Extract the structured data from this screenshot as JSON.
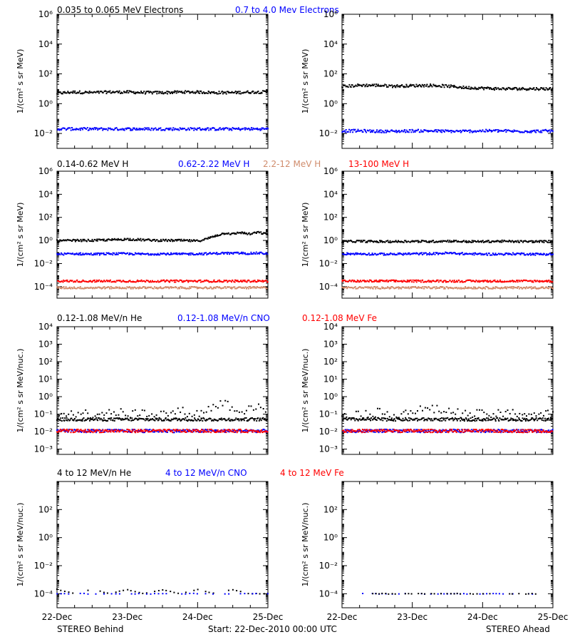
{
  "legend_rows": [
    [
      {
        "text": "0.035 to 0.065 MeV Electrons",
        "color": "#000000"
      },
      {
        "text": "0.7 to 4.0 Mev Electrons",
        "color": "#0000ff"
      }
    ],
    [
      {
        "text": "0.14-0.62 MeV H",
        "color": "#000000"
      },
      {
        "text": "0.62-2.22 MeV H",
        "color": "#0000ff"
      },
      {
        "text": "2.2-12 MeV H",
        "color": "#d08c6c"
      },
      {
        "text": "13-100 MeV H",
        "color": "#ff0000"
      }
    ],
    [
      {
        "text": "0.12-1.08 MeV/n He",
        "color": "#000000"
      },
      {
        "text": "0.12-1.08 MeV/n CNO",
        "color": "#0000ff"
      },
      {
        "text": "0.12-1.08 MeV Fe",
        "color": "#ff0000"
      }
    ],
    [
      {
        "text": "4 to 12 MeV/n He",
        "color": "#000000"
      },
      {
        "text": "4 to 12 MeV/n CNO",
        "color": "#0000ff"
      },
      {
        "text": "4 to 12 MeV Fe",
        "color": "#ff0000"
      }
    ]
  ],
  "x_ticks": [
    "22-Dec",
    "23-Dec",
    "24-Dec",
    "25-Dec"
  ],
  "footer": {
    "left": "STEREO Behind",
    "center": "Start: 22-Dec-2010 00:00 UTC",
    "right": "STEREO Ahead"
  },
  "chart_data": [
    {
      "type": "scatter",
      "spacecraft": "STEREO Behind",
      "row": 0,
      "ylabel": "1/(cm² s sr MeV)",
      "yscale": "log",
      "ylim": [
        0.001,
        1000000
      ],
      "yticks": [
        {
          "value": 0.01,
          "label": "10⁻²"
        },
        {
          "value": 1,
          "label": "10⁰"
        },
        {
          "value": 100,
          "label": "10²"
        },
        {
          "value": 10000,
          "label": "10⁴"
        },
        {
          "value": 1000000,
          "label": "10⁶"
        }
      ],
      "x": [
        0,
        0.25,
        0.5,
        0.75,
        1,
        1.25,
        1.5,
        1.75,
        2,
        2.25,
        2.5,
        2.75,
        3
      ],
      "series": [
        {
          "name": "0.035 to 0.065 MeV Electrons",
          "color": "#000000",
          "values": [
            5,
            6,
            5.5,
            6,
            6,
            5.5,
            5.5,
            6,
            6,
            5.5,
            5.5,
            6,
            6
          ]
        },
        {
          "name": "0.7 to 4.0 Mev Electrons",
          "color": "#0000ff",
          "values": [
            0.02,
            0.02,
            0.02,
            0.02,
            0.02,
            0.02,
            0.02,
            0.02,
            0.02,
            0.02,
            0.02,
            0.02,
            0.02
          ]
        }
      ]
    },
    {
      "type": "scatter",
      "spacecraft": "STEREO Ahead",
      "row": 0,
      "ylabel": "1/(cm² s sr MeV)",
      "yscale": "log",
      "ylim": [
        0.001,
        1000000
      ],
      "yticks": [
        {
          "value": 0.01,
          "label": "10⁻²"
        },
        {
          "value": 1,
          "label": "10⁰"
        },
        {
          "value": 100,
          "label": "10²"
        },
        {
          "value": 10000,
          "label": "10⁴"
        },
        {
          "value": 1000000,
          "label": "10⁶"
        }
      ],
      "x": [
        0,
        0.25,
        0.5,
        0.75,
        1,
        1.25,
        1.5,
        1.75,
        2,
        2.25,
        2.5,
        2.75,
        3
      ],
      "series": [
        {
          "name": "0.035 to 0.065 MeV Electrons",
          "color": "#000000",
          "values": [
            14,
            17,
            17,
            15,
            16,
            17,
            15,
            12,
            11,
            10,
            10,
            10,
            10
          ]
        },
        {
          "name": "0.7 to 4.0 Mev Electrons",
          "color": "#0000ff",
          "values": [
            0.015,
            0.015,
            0.014,
            0.014,
            0.015,
            0.015,
            0.014,
            0.014,
            0.015,
            0.015,
            0.014,
            0.014,
            0.015
          ]
        }
      ]
    },
    {
      "type": "scatter",
      "spacecraft": "STEREO Behind",
      "row": 1,
      "ylabel": "1/(cm² s sr MeV)",
      "yscale": "log",
      "ylim": [
        1e-05,
        1000000
      ],
      "yticks": [
        {
          "value": 0.0001,
          "label": "10⁻⁴"
        },
        {
          "value": 0.01,
          "label": "10⁻²"
        },
        {
          "value": 1,
          "label": "10⁰"
        },
        {
          "value": 100,
          "label": "10²"
        },
        {
          "value": 10000,
          "label": "10⁴"
        },
        {
          "value": 1000000,
          "label": "10⁶"
        }
      ],
      "x": [
        0,
        0.25,
        0.5,
        0.75,
        1,
        1.25,
        1.5,
        1.75,
        2,
        2.1,
        2.25,
        2.4,
        2.5,
        2.6,
        2.75,
        2.85,
        3
      ],
      "series": [
        {
          "name": "0.14-0.62 MeV H",
          "color": "#000000",
          "values": [
            0.9,
            1.0,
            1.0,
            1.1,
            1.3,
            1.1,
            1.0,
            1.0,
            0.9,
            1.2,
            2.5,
            4.5,
            3.5,
            5,
            3.5,
            5,
            3.5
          ]
        },
        {
          "name": "0.62-2.22 MeV H",
          "color": "#0000ff",
          "values": [
            0.065,
            0.07,
            0.065,
            0.07,
            0.07,
            0.065,
            0.07,
            0.065,
            0.07,
            0.07,
            0.075,
            0.08,
            0.075,
            0.08,
            0.075,
            0.08,
            0.075
          ]
        },
        {
          "name": "2.2-12 MeV H",
          "color": "#d08c6c",
          "values": [
            8e-05,
            8e-05,
            8e-05,
            8e-05,
            8e-05,
            8e-05,
            8e-05,
            8e-05,
            8e-05,
            8e-05,
            8e-05,
            8e-05,
            8e-05,
            8e-05,
            8e-05,
            8e-05,
            8e-05
          ]
        },
        {
          "name": "13-100 MeV H",
          "color": "#ff0000",
          "values": [
            0.0003,
            0.0003,
            0.0003,
            0.0003,
            0.0003,
            0.0003,
            0.0003,
            0.0003,
            0.0003,
            0.0003,
            0.0003,
            0.0003,
            0.0003,
            0.0003,
            0.0003,
            0.0003,
            0.0003
          ]
        }
      ]
    },
    {
      "type": "scatter",
      "spacecraft": "STEREO Ahead",
      "row": 1,
      "ylabel": "1/(cm² s sr MeV)",
      "yscale": "log",
      "ylim": [
        1e-05,
        1000000
      ],
      "yticks": [
        {
          "value": 0.0001,
          "label": "10⁻⁴"
        },
        {
          "value": 0.01,
          "label": "10⁻²"
        },
        {
          "value": 1,
          "label": "10⁰"
        },
        {
          "value": 100,
          "label": "10²"
        },
        {
          "value": 10000,
          "label": "10⁴"
        },
        {
          "value": 1000000,
          "label": "10⁶"
        }
      ],
      "x": [
        0,
        0.25,
        0.5,
        0.75,
        1,
        1.25,
        1.5,
        1.75,
        2,
        2.25,
        2.5,
        2.75,
        3
      ],
      "series": [
        {
          "name": "0.14-0.62 MeV H",
          "color": "#000000",
          "values": [
            0.8,
            0.85,
            0.8,
            0.8,
            0.85,
            0.8,
            0.9,
            0.8,
            0.8,
            0.85,
            0.8,
            0.8,
            0.8
          ]
        },
        {
          "name": "0.62-2.22 MeV H",
          "color": "#0000ff",
          "values": [
            0.07,
            0.07,
            0.065,
            0.065,
            0.07,
            0.07,
            0.08,
            0.07,
            0.065,
            0.065,
            0.07,
            0.065,
            0.065
          ]
        },
        {
          "name": "2.2-12 MeV H",
          "color": "#d08c6c",
          "values": [
            8e-05,
            8e-05,
            8e-05,
            8e-05,
            8e-05,
            8e-05,
            8e-05,
            8e-05,
            8e-05,
            8e-05,
            8e-05,
            8e-05,
            8e-05
          ]
        },
        {
          "name": "13-100 MeV H",
          "color": "#ff0000",
          "values": [
            0.0003,
            0.0003,
            0.0003,
            0.0003,
            0.0003,
            0.0003,
            0.0003,
            0.0003,
            0.0003,
            0.0003,
            0.0003,
            0.0003,
            0.0003
          ]
        }
      ]
    },
    {
      "type": "scatter",
      "spacecraft": "STEREO Behind",
      "row": 2,
      "ylabel": "1/(cm² s sr MeV/nuc.)",
      "yscale": "log",
      "ylim": [
        0.0005,
        10000
      ],
      "yticks": [
        {
          "value": 0.001,
          "label": "10⁻³"
        },
        {
          "value": 0.01,
          "label": "10⁻²"
        },
        {
          "value": 0.1,
          "label": "10⁻¹"
        },
        {
          "value": 1,
          "label": "10⁰"
        },
        {
          "value": 10,
          "label": "10¹"
        },
        {
          "value": 100,
          "label": "10²"
        },
        {
          "value": 1000,
          "label": "10³"
        },
        {
          "value": 10000,
          "label": "10⁴"
        }
      ],
      "x": [
        0,
        0.25,
        0.5,
        0.75,
        1,
        1.25,
        1.5,
        1.75,
        2,
        2.25,
        2.4,
        2.5,
        2.65,
        2.75,
        2.9,
        3
      ],
      "series": [
        {
          "name": "0.12-1.08 MeV/n He",
          "color": "#000000",
          "values": [
            0.05,
            0.05,
            0.05,
            0.05,
            0.05,
            0.05,
            0.05,
            0.05,
            0.05,
            0.05,
            0.05,
            0.05,
            0.05,
            0.05,
            0.05,
            0.05
          ]
        },
        {
          "name": "0.12-1.08 MeV/n He (scattered)",
          "color": "#000000",
          "values": [
            0.1,
            0.12,
            0.1,
            0.15,
            0.1,
            0.12,
            0.1,
            0.15,
            0.1,
            0.3,
            0.5,
            0.2,
            0.15,
            0.3,
            0.2,
            0.15
          ]
        },
        {
          "name": "0.12-1.08 MeV/n CNO",
          "color": "#0000ff",
          "values": [
            0.011,
            0.011,
            0.011,
            0.011,
            0.011,
            0.011,
            0.011,
            0.011,
            0.011,
            0.011,
            0.011,
            0.011,
            0.011,
            0.011,
            0.011,
            0.011
          ]
        },
        {
          "name": "0.12-1.08 MeV Fe",
          "color": "#ff0000",
          "values": [
            0.011,
            0.011,
            0.011,
            0.011,
            0.011,
            0.011,
            0.011,
            0.011,
            0.011,
            0.011,
            0.011,
            0.011,
            0.011,
            0.011,
            0.011,
            0.011
          ]
        }
      ]
    },
    {
      "type": "scatter",
      "spacecraft": "STEREO Ahead",
      "row": 2,
      "ylabel": "1/(cm² s sr MeV/nuc.)",
      "yscale": "log",
      "ylim": [
        0.0005,
        10000
      ],
      "yticks": [
        {
          "value": 0.001,
          "label": "10⁻³"
        },
        {
          "value": 0.01,
          "label": "10⁻²"
        },
        {
          "value": 0.1,
          "label": "10⁻¹"
        },
        {
          "value": 1,
          "label": "10⁰"
        },
        {
          "value": 10,
          "label": "10¹"
        },
        {
          "value": 100,
          "label": "10²"
        },
        {
          "value": 1000,
          "label": "10³"
        },
        {
          "value": 10000,
          "label": "10⁴"
        }
      ],
      "x": [
        0,
        0.25,
        0.5,
        0.75,
        1,
        1.25,
        1.5,
        1.75,
        2,
        2.25,
        2.5,
        2.75,
        3
      ],
      "series": [
        {
          "name": "0.12-1.08 MeV/n He",
          "color": "#000000",
          "values": [
            0.05,
            0.05,
            0.05,
            0.05,
            0.05,
            0.05,
            0.05,
            0.05,
            0.05,
            0.05,
            0.05,
            0.05,
            0.05
          ]
        },
        {
          "name": "0.12-1.08 MeV/n He (scattered)",
          "color": "#000000",
          "values": [
            0.1,
            0.1,
            0.12,
            0.1,
            0.15,
            0.2,
            0.15,
            0.1,
            0.1,
            0.1,
            0.12,
            0.1,
            0.1
          ]
        },
        {
          "name": "0.12-1.08 MeV/n CNO",
          "color": "#0000ff",
          "values": [
            0.011,
            0.011,
            0.011,
            0.011,
            0.011,
            0.011,
            0.011,
            0.011,
            0.011,
            0.011,
            0.011,
            0.011,
            0.011
          ]
        },
        {
          "name": "0.12-1.08 MeV Fe",
          "color": "#ff0000",
          "values": [
            0.011,
            0.011,
            0.011,
            0.011,
            0.011,
            0.011,
            0.011,
            0.011,
            0.011,
            0.011,
            0.011,
            0.011,
            0.011
          ]
        }
      ]
    },
    {
      "type": "scatter",
      "spacecraft": "STEREO Behind",
      "row": 3,
      "ylabel": "1/(cm² s sr MeV/nuc.)",
      "yscale": "log",
      "ylim": [
        1e-05,
        10000
      ],
      "yticks": [
        {
          "value": 0.0001,
          "label": "10⁻⁴"
        },
        {
          "value": 0.01,
          "label": "10⁻²"
        },
        {
          "value": 1,
          "label": "10⁰"
        },
        {
          "value": 100,
          "label": "10²"
        }
      ],
      "x": [
        0,
        0.25,
        0.5,
        0.75,
        1,
        1.25,
        1.5,
        1.75,
        2,
        2.25,
        2.5,
        2.75,
        3
      ],
      "series": [
        {
          "name": "4 to 12 MeV/n He",
          "color": "#000000",
          "values": [
            0.0002,
            0.0001,
            0.0002,
            0.0001,
            0.0002,
            0.0001,
            0.0002,
            0.0001,
            0.0002,
            0.0001,
            0.0002,
            0.0001,
            0.0001
          ]
        },
        {
          "name": "4 to 12 MeV/n CNO",
          "color": "#0000ff",
          "values": [
            0.0001,
            0.0001,
            0.0001,
            0.0001,
            0.0001,
            0.0001,
            0.0001,
            0.0001,
            0.0001,
            0.0001,
            0.0001,
            0.0001,
            0.0001
          ]
        }
      ]
    },
    {
      "type": "scatter",
      "spacecraft": "STEREO Ahead",
      "row": 3,
      "ylabel": "1/(cm² s sr MeV/nuc.)",
      "yscale": "log",
      "ylim": [
        1e-05,
        10000
      ],
      "yticks": [
        {
          "value": 0.0001,
          "label": "10⁻⁴"
        },
        {
          "value": 0.01,
          "label": "10⁻²"
        },
        {
          "value": 1,
          "label": "10⁰"
        },
        {
          "value": 100,
          "label": "10²"
        }
      ],
      "x": [
        0.25,
        0.5,
        0.75,
        1,
        1.25,
        1.5,
        1.75,
        2,
        2.25,
        2.5,
        2.75
      ],
      "series": [
        {
          "name": "4 to 12 MeV/n CNO",
          "color": "#0000ff",
          "values": [
            0.0001,
            0.0001,
            0.0001,
            0.0001,
            0.0001,
            0.0001,
            0.0001,
            0.0001,
            0.0001,
            0.0001,
            0.0001
          ]
        },
        {
          "name": "4 to 12 MeV/n He",
          "color": "#000000",
          "values": [
            0.0001,
            0.0001,
            0.0001,
            0.0001,
            0.0001,
            0.0001,
            0.0001,
            0.0001,
            0.0001,
            0.0001,
            0.0001
          ]
        }
      ]
    }
  ]
}
